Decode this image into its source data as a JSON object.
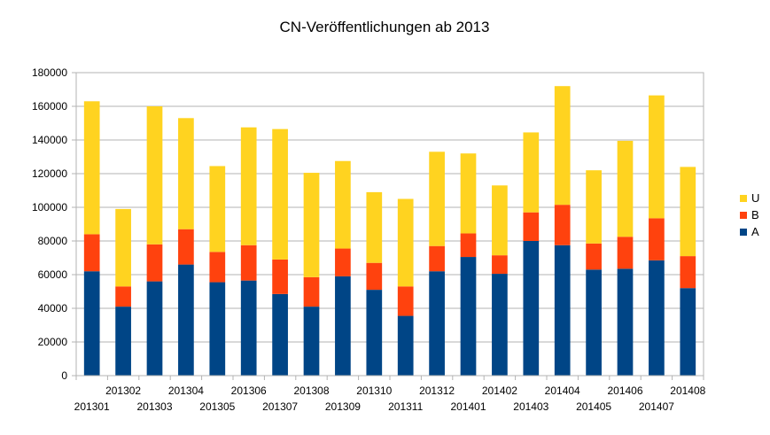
{
  "chart_data": {
    "type": "bar",
    "stacked": true,
    "title": "CN-Veröffentlichungen ab 2013",
    "xlabel": "",
    "ylabel": "",
    "ylim": [
      0,
      180000
    ],
    "yticks": [
      0,
      20000,
      40000,
      60000,
      80000,
      100000,
      120000,
      140000,
      160000,
      180000
    ],
    "grid": true,
    "legend_position": "right",
    "categories": [
      "201301",
      "201302",
      "201303",
      "201304",
      "201305",
      "201306",
      "201307",
      "201308",
      "201309",
      "201310",
      "201311",
      "201312",
      "201401",
      "201402",
      "201403",
      "201404",
      "201405",
      "201406",
      "201407",
      "201408"
    ],
    "series": [
      {
        "name": "A",
        "color": "#004586",
        "values": [
          62000,
          41000,
          56000,
          66000,
          55500,
          56500,
          48500,
          41000,
          59000,
          51000,
          35500,
          62000,
          70500,
          60500,
          80000,
          77500,
          63000,
          63500,
          68500,
          52000
        ]
      },
      {
        "name": "B",
        "color": "#ff420e",
        "values": [
          22000,
          12000,
          22000,
          21000,
          18000,
          21000,
          20500,
          17500,
          16500,
          16000,
          17500,
          15000,
          14000,
          11000,
          17000,
          24000,
          15500,
          19000,
          25000,
          19000
        ]
      },
      {
        "name": "U",
        "color": "#ffd320",
        "values": [
          79000,
          46000,
          82000,
          66000,
          51000,
          70000,
          77500,
          62000,
          52000,
          42000,
          52000,
          56000,
          47500,
          41500,
          47500,
          70500,
          43500,
          57000,
          73000,
          53000
        ]
      }
    ],
    "legend_order": [
      "U",
      "B",
      "A"
    ]
  }
}
